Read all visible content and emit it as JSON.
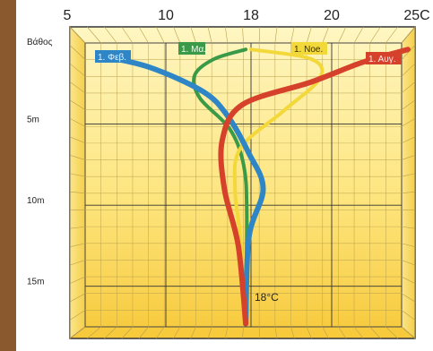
{
  "chart_data": {
    "type": "line",
    "title": "",
    "xlabel": "",
    "ylabel": "Βάθος",
    "x_ticks": [
      "5",
      "10",
      "18",
      "20",
      "25C"
    ],
    "y_ticks": [
      "5m",
      "10m",
      "15m"
    ],
    "xlim": [
      5,
      25
    ],
    "ylim": [
      0,
      17.5
    ],
    "y_inverted": true,
    "grid": true,
    "annotation": "18°C",
    "series": [
      {
        "name": "1. Φεβ.",
        "color": "#2f86c6",
        "x": [
          6.0,
          9.0,
          13.5,
          15.8,
          17.8,
          18.3,
          17.8,
          17.5
        ],
        "y": [
          0.8,
          1.5,
          3.0,
          4.5,
          6.8,
          9.0,
          12.0,
          17.3
        ]
      },
      {
        "name": "1. Μα.",
        "color": "#3a9a48",
        "x": [
          17.5,
          14.5,
          12.7,
          13.2,
          16.0,
          17.3,
          17.6,
          17.5
        ],
        "y": [
          0.4,
          1.0,
          2.0,
          3.4,
          5.3,
          7.5,
          10.5,
          17.3
        ]
      },
      {
        "name": "1. Noe.",
        "color": "#f3d83a",
        "x": [
          18.0,
          19.5,
          19.7,
          18.8,
          17.0,
          16.5,
          17.0,
          17.5
        ],
        "y": [
          0.4,
          1.0,
          2.2,
          4.2,
          6.5,
          9.0,
          12.0,
          17.3
        ]
      },
      {
        "name": "1. Αυγ.",
        "color": "#d6412c",
        "x": [
          25.0,
          22.0,
          19.5,
          17.2,
          15.3,
          15.5,
          16.8,
          17.5
        ],
        "y": [
          0.4,
          1.2,
          2.4,
          3.8,
          6.0,
          9.0,
          12.5,
          17.3
        ]
      }
    ]
  }
}
